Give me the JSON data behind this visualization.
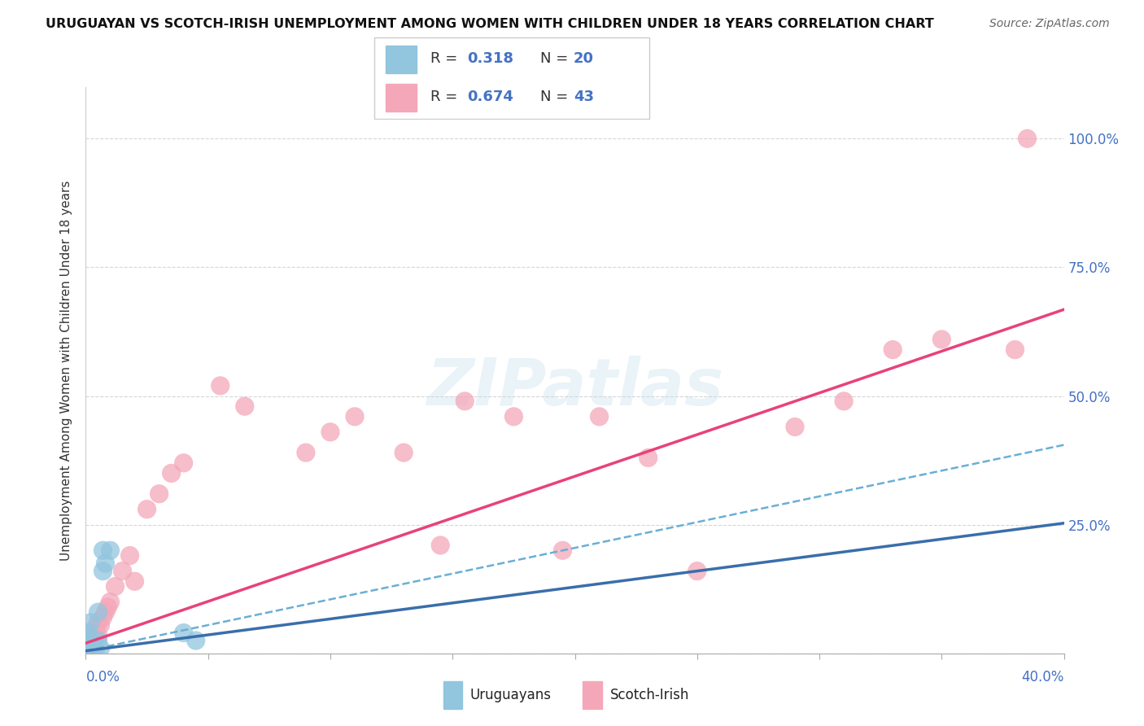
{
  "title": "URUGUAYAN VS SCOTCH-IRISH UNEMPLOYMENT AMONG WOMEN WITH CHILDREN UNDER 18 YEARS CORRELATION CHART",
  "source": "Source: ZipAtlas.com",
  "ylabel": "Unemployment Among Women with Children Under 18 years",
  "xlim": [
    0.0,
    0.4
  ],
  "ylim": [
    0.0,
    1.1
  ],
  "watermark": "ZIPatlas",
  "blue_scatter_color": "#92c5de",
  "pink_scatter_color": "#f4a7b9",
  "blue_line_color": "#3a6eaa",
  "pink_line_color": "#e8427a",
  "blue_dash_color": "#6aafd4",
  "R_uruguayan": "0.318",
  "N_uruguayan": "20",
  "R_scotch": "0.674",
  "N_scotch": "43",
  "label_color": "#4472c4",
  "text_dark": "#333333",
  "grid_color": "#cccccc",
  "uruguayan_x": [
    0.001,
    0.001,
    0.001,
    0.001,
    0.001,
    0.002,
    0.002,
    0.002,
    0.003,
    0.003,
    0.004,
    0.005,
    0.005,
    0.006,
    0.007,
    0.007,
    0.008,
    0.01,
    0.04,
    0.045
  ],
  "uruguayan_y": [
    0.005,
    0.01,
    0.02,
    0.03,
    0.04,
    0.005,
    0.015,
    0.06,
    0.01,
    0.02,
    0.005,
    0.025,
    0.08,
    0.01,
    0.16,
    0.2,
    0.175,
    0.2,
    0.04,
    0.025
  ],
  "scotch_x": [
    0.001,
    0.001,
    0.001,
    0.002,
    0.002,
    0.003,
    0.003,
    0.004,
    0.004,
    0.005,
    0.005,
    0.006,
    0.007,
    0.008,
    0.009,
    0.01,
    0.012,
    0.015,
    0.018,
    0.02,
    0.025,
    0.03,
    0.035,
    0.04,
    0.055,
    0.065,
    0.09,
    0.1,
    0.11,
    0.13,
    0.145,
    0.155,
    0.175,
    0.195,
    0.21,
    0.23,
    0.25,
    0.29,
    0.31,
    0.33,
    0.35,
    0.38,
    0.385
  ],
  "scotch_y": [
    0.005,
    0.01,
    0.02,
    0.015,
    0.025,
    0.02,
    0.04,
    0.03,
    0.05,
    0.035,
    0.06,
    0.055,
    0.07,
    0.08,
    0.09,
    0.1,
    0.13,
    0.16,
    0.19,
    0.14,
    0.28,
    0.31,
    0.35,
    0.37,
    0.52,
    0.48,
    0.39,
    0.43,
    0.46,
    0.39,
    0.21,
    0.49,
    0.46,
    0.2,
    0.46,
    0.38,
    0.16,
    0.44,
    0.49,
    0.59,
    0.61,
    0.59,
    1.0
  ]
}
